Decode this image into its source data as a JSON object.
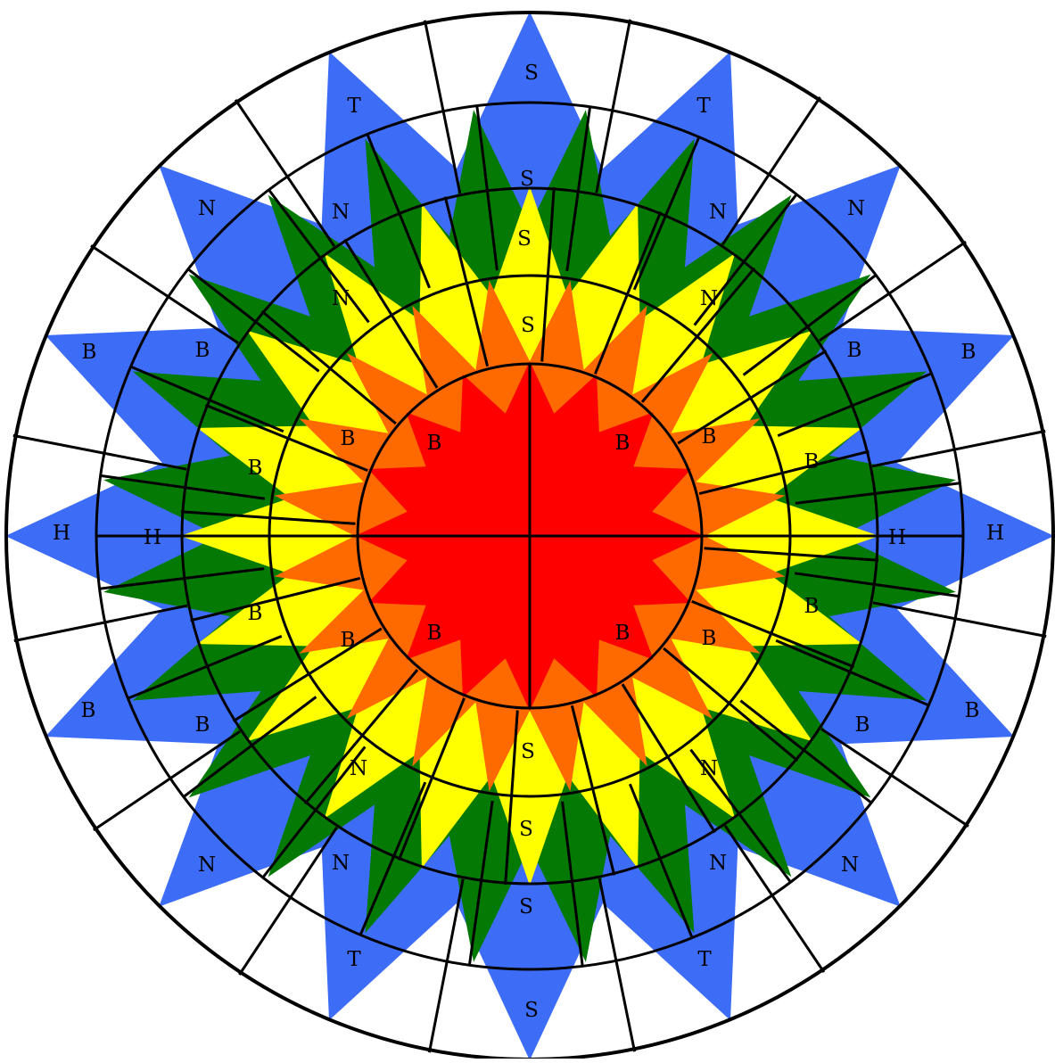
{
  "colors": {
    "background": "#ffffff",
    "blue": "#3d6df7",
    "green": "#047a04",
    "yellow": "#ffff00",
    "orange": "#ff6a00",
    "red": "#ff0000",
    "lines": "#000000"
  },
  "bands": [
    {
      "id": "blue",
      "labels": [
        {
          "text": "S"
        },
        {
          "text": "T"
        },
        {
          "text": "N"
        },
        {
          "text": "B"
        },
        {
          "text": "H"
        },
        {
          "text": "B"
        },
        {
          "text": "N"
        },
        {
          "text": "T"
        },
        {
          "text": "S"
        },
        {
          "text": "T"
        },
        {
          "text": "N"
        },
        {
          "text": "B"
        },
        {
          "text": "H"
        },
        {
          "text": "B"
        },
        {
          "text": "N"
        },
        {
          "text": "T"
        }
      ]
    },
    {
      "id": "green",
      "labels": [
        {
          "text": "S"
        },
        {
          "text": "N"
        },
        {
          "text": "B"
        },
        {
          "text": "H"
        },
        {
          "text": "B"
        },
        {
          "text": "N"
        },
        {
          "text": "S"
        },
        {
          "text": "N"
        },
        {
          "text": "B"
        },
        {
          "text": "H"
        },
        {
          "text": "B"
        },
        {
          "text": "N"
        }
      ]
    },
    {
      "id": "yellow",
      "labels": [
        {
          "text": "S"
        },
        {
          "text": "N"
        },
        {
          "text": "B"
        },
        {
          "text": "B"
        },
        {
          "text": "N"
        },
        {
          "text": "S"
        },
        {
          "text": "N"
        },
        {
          "text": "B"
        },
        {
          "text": "B"
        },
        {
          "text": "N"
        }
      ]
    },
    {
      "id": "orange",
      "labels": [
        {
          "text": "S"
        },
        {
          "text": "B"
        },
        {
          "text": "B"
        },
        {
          "text": "S"
        },
        {
          "text": "B"
        },
        {
          "text": "B"
        }
      ]
    },
    {
      "id": "red",
      "labels": [
        {
          "text": "B"
        },
        {
          "text": "B"
        },
        {
          "text": "B"
        },
        {
          "text": "B"
        }
      ]
    }
  ]
}
